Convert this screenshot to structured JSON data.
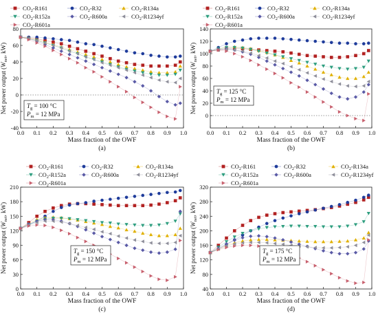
{
  "figure": {
    "x_label": "Mass fraction of the OWF",
    "y_label_main": "Net power output (",
    "y_label_sym": "W",
    "y_label_sub": "net",
    "y_label_unit": ", kW)",
    "pressure_sym": "P",
    "pressure_sub": "m",
    "temp_sym": "T",
    "temp_sub": "g",
    "legend_prefix": "CO",
    "legend_sub": "2",
    "legend_suffixes": [
      "-R161",
      "-R32",
      "-R134a",
      "-R152a",
      "-R600a",
      "-R1234yf",
      "-R601a"
    ]
  },
  "chart_data": [
    {
      "type": "scatter",
      "panel_label": "(a)",
      "temperature": "= 100 °C",
      "pressure": "= 12 MPa",
      "xlim": [
        0.0,
        1.0
      ],
      "ylim": [
        -40,
        80
      ],
      "xticks": [
        "0.0",
        "0.1",
        "0.2",
        "0.3",
        "0.4",
        "0.5",
        "0.6",
        "0.7",
        "0.8",
        "0.9",
        "1.0"
      ],
      "yticks": [
        "-40",
        "-20",
        "0",
        "20",
        "40",
        "60",
        "80"
      ],
      "ref_line_y": 0,
      "x": [
        0,
        0.05,
        0.1,
        0.15,
        0.2,
        0.25,
        0.3,
        0.35,
        0.4,
        0.45,
        0.5,
        0.55,
        0.6,
        0.65,
        0.7,
        0.75,
        0.8,
        0.85,
        0.9,
        0.95,
        0.98
      ],
      "series": [
        {
          "name": "CO2-R161",
          "color": "#b22222",
          "marker": "square",
          "values": [
            70,
            69,
            68,
            66,
            64,
            62,
            59,
            56,
            53,
            50,
            47,
            44,
            41,
            39,
            37,
            36,
            35,
            35,
            35,
            36,
            40
          ]
        },
        {
          "name": "CO2-R32",
          "color": "#1f3c9b",
          "marker": "circle",
          "values": [
            70,
            70,
            70,
            69,
            68,
            67,
            66,
            64,
            62,
            61,
            59,
            57,
            55,
            53,
            51,
            50,
            48,
            47,
            46,
            46,
            47
          ]
        },
        {
          "name": "CO2-R134a",
          "color": "#e0b000",
          "marker": "triangle",
          "values": [
            70,
            69,
            67,
            64,
            61,
            58,
            55,
            52,
            49,
            46,
            43,
            40,
            37,
            34,
            32,
            30,
            28,
            27,
            27,
            28,
            35
          ]
        },
        {
          "name": "CO2-R152a",
          "color": "#2e9e7f",
          "marker": "triangle-down",
          "values": [
            70,
            68,
            66,
            63,
            60,
            57,
            53,
            50,
            46,
            43,
            40,
            37,
            34,
            31,
            29,
            27,
            25,
            24,
            24,
            25,
            30
          ]
        },
        {
          "name": "CO2-R600a",
          "color": "#5a5aa6",
          "marker": "diamond",
          "values": [
            70,
            68,
            65,
            61,
            57,
            53,
            49,
            45,
            41,
            37,
            33,
            29,
            25,
            21,
            16,
            11,
            5,
            -2,
            -8,
            -12,
            -10
          ]
        },
        {
          "name": "CO2-R1234yf",
          "color": "#8e8e9a",
          "marker": "triangle-left",
          "values": [
            70,
            68,
            66,
            63,
            60,
            57,
            53,
            50,
            46,
            43,
            39,
            36,
            33,
            30,
            27,
            24,
            21,
            18,
            16,
            15,
            20
          ]
        },
        {
          "name": "CO2-R601a",
          "color": "#c8606e",
          "marker": "triangle-right",
          "values": [
            70,
            67,
            63,
            59,
            54,
            49,
            44,
            39,
            33,
            28,
            22,
            16,
            10,
            4,
            -3,
            -9,
            -15,
            -21,
            -26,
            -29,
            10
          ]
        }
      ]
    },
    {
      "type": "scatter",
      "panel_label": "(b)",
      "temperature": "= 125 °C",
      "pressure": "= 12 MPa",
      "xlim": [
        0.0,
        1.0
      ],
      "ylim": [
        -20,
        140
      ],
      "xticks": [
        "0.0",
        "0.1",
        "0.2",
        "0.3",
        "0.4",
        "0.5",
        "0.6",
        "0.7",
        "0.8",
        "0.9",
        "1.0"
      ],
      "yticks": [
        "0",
        "20",
        "40",
        "60",
        "80",
        "100",
        "120",
        "140"
      ],
      "ref_line_y": 0,
      "x": [
        0,
        0.05,
        0.1,
        0.15,
        0.2,
        0.25,
        0.3,
        0.35,
        0.4,
        0.45,
        0.5,
        0.55,
        0.6,
        0.65,
        0.7,
        0.75,
        0.8,
        0.85,
        0.9,
        0.95,
        0.98
      ],
      "series": [
        {
          "name": "CO2-R161",
          "color": "#b22222",
          "marker": "square",
          "values": [
            104,
            106,
            108,
            108,
            108,
            107,
            106,
            105,
            104,
            103,
            101,
            99,
            97,
            96,
            95,
            94,
            94,
            95,
            97,
            100,
            105
          ]
        },
        {
          "name": "CO2-R32",
          "color": "#1f3c9b",
          "marker": "circle",
          "values": [
            104,
            110,
            116,
            120,
            122,
            124,
            125,
            125,
            125,
            124,
            123,
            122,
            121,
            120,
            119,
            118,
            117,
            117,
            116,
            116,
            117
          ]
        },
        {
          "name": "CO2-R134a",
          "color": "#e0b000",
          "marker": "triangle",
          "values": [
            104,
            108,
            110,
            111,
            110,
            108,
            105,
            102,
            98,
            94,
            89,
            85,
            80,
            75,
            70,
            66,
            62,
            60,
            60,
            63,
            70
          ]
        },
        {
          "name": "CO2-R152a",
          "color": "#2e9e7f",
          "marker": "triangle-down",
          "values": [
            104,
            108,
            110,
            110,
            109,
            107,
            104,
            101,
            98,
            95,
            92,
            89,
            86,
            83,
            80,
            78,
            76,
            75,
            76,
            78,
            88
          ]
        },
        {
          "name": "CO2-R600a",
          "color": "#5a5aa6",
          "marker": "diamond",
          "values": [
            104,
            107,
            108,
            106,
            103,
            99,
            94,
            88,
            82,
            76,
            70,
            64,
            57,
            50,
            43,
            36,
            30,
            27,
            30,
            38,
            50
          ]
        },
        {
          "name": "CO2-R1234yf",
          "color": "#8e8e9a",
          "marker": "triangle-left",
          "values": [
            104,
            106,
            107,
            106,
            104,
            101,
            97,
            93,
            88,
            84,
            79,
            74,
            69,
            64,
            59,
            55,
            51,
            48,
            47,
            48,
            55
          ]
        },
        {
          "name": "CO2-R601a",
          "color": "#c8606e",
          "marker": "triangle-right",
          "values": [
            104,
            106,
            104,
            100,
            95,
            89,
            82,
            75,
            68,
            61,
            53,
            46,
            38,
            30,
            22,
            14,
            6,
            0,
            -5,
            -8,
            35
          ]
        }
      ]
    },
    {
      "type": "scatter",
      "panel_label": "(c)",
      "temperature": "= 150 °C",
      "pressure": "= 12 MPa",
      "xlim": [
        0.0,
        1.0
      ],
      "ylim": [
        0,
        210
      ],
      "xticks": [
        "0.0",
        "0.1",
        "0.2",
        "0.3",
        "0.4",
        "0.5",
        "0.6",
        "0.7",
        "0.8",
        "0.9",
        "1.0"
      ],
      "yticks": [
        "0",
        "30",
        "60",
        "90",
        "120",
        "150",
        "180",
        "210"
      ],
      "ref_line_y": null,
      "x": [
        0,
        0.05,
        0.1,
        0.15,
        0.2,
        0.25,
        0.3,
        0.35,
        0.4,
        0.45,
        0.5,
        0.55,
        0.6,
        0.65,
        0.7,
        0.75,
        0.8,
        0.85,
        0.9,
        0.95,
        0.98
      ],
      "series": [
        {
          "name": "CO2-R161",
          "color": "#b22222",
          "marker": "square",
          "values": [
            125,
            137,
            150,
            160,
            167,
            172,
            175,
            176,
            176,
            175,
            174,
            173,
            172,
            172,
            172,
            172,
            173,
            175,
            178,
            182,
            188
          ]
        },
        {
          "name": "CO2-R32",
          "color": "#1f3c9b",
          "marker": "circle",
          "values": [
            125,
            132,
            140,
            150,
            160,
            168,
            173,
            176,
            178,
            181,
            183,
            185,
            187,
            189,
            191,
            193,
            195,
            197,
            199,
            200,
            203
          ]
        },
        {
          "name": "CO2-R134a",
          "color": "#e0b000",
          "marker": "triangle",
          "values": [
            125,
            135,
            143,
            147,
            148,
            147,
            145,
            142,
            139,
            136,
            133,
            129,
            126,
            122,
            119,
            115,
            112,
            110,
            110,
            112,
            125
          ]
        },
        {
          "name": "CO2-R152a",
          "color": "#2e9e7f",
          "marker": "triangle-down",
          "values": [
            125,
            133,
            140,
            144,
            146,
            146,
            145,
            143,
            141,
            139,
            137,
            136,
            134,
            133,
            132,
            131,
            131,
            132,
            135,
            140,
            155
          ]
        },
        {
          "name": "CO2-R600a",
          "color": "#5a5aa6",
          "marker": "diamond",
          "values": [
            125,
            134,
            140,
            143,
            143,
            140,
            135,
            129,
            122,
            115,
            108,
            102,
            96,
            90,
            84,
            80,
            76,
            74,
            76,
            82,
            160
          ]
        },
        {
          "name": "CO2-R1234yf",
          "color": "#8e8e9a",
          "marker": "triangle-left",
          "values": [
            125,
            132,
            137,
            140,
            140,
            138,
            135,
            131,
            127,
            123,
            118,
            114,
            109,
            105,
            101,
            98,
            95,
            94,
            94,
            96,
            110
          ]
        },
        {
          "name": "CO2-R601a",
          "color": "#c8606e",
          "marker": "triangle-right",
          "values": [
            125,
            130,
            132,
            131,
            127,
            121,
            114,
            106,
            98,
            90,
            81,
            72,
            63,
            54,
            45,
            36,
            27,
            20,
            18,
            25,
            100
          ]
        }
      ]
    },
    {
      "type": "scatter",
      "panel_label": "(d)",
      "temperature": "= 175 °C",
      "pressure": "= 12 MPa",
      "xlim": [
        0.0,
        1.0
      ],
      "ylim": [
        40,
        320
      ],
      "xticks": [
        "0.0",
        "0.1",
        "0.2",
        "0.3",
        "0.4",
        "0.5",
        "0.6",
        "0.7",
        "0.8",
        "0.9",
        "1.0"
      ],
      "yticks": [
        "40",
        "80",
        "120",
        "160",
        "200",
        "240",
        "280",
        "320"
      ],
      "ref_line_y": null,
      "x": [
        0,
        0.05,
        0.1,
        0.15,
        0.2,
        0.25,
        0.3,
        0.35,
        0.4,
        0.45,
        0.5,
        0.55,
        0.6,
        0.65,
        0.7,
        0.75,
        0.8,
        0.85,
        0.9,
        0.95,
        0.98
      ],
      "series": [
        {
          "name": "CO2-R161",
          "color": "#b22222",
          "marker": "square",
          "values": [
            140,
            160,
            180,
            200,
            215,
            228,
            237,
            243,
            247,
            250,
            252,
            254,
            256,
            258,
            261,
            264,
            268,
            273,
            278,
            285,
            292
          ]
        },
        {
          "name": "CO2-R32",
          "color": "#1f3c9b",
          "marker": "circle",
          "values": [
            140,
            150,
            162,
            175,
            188,
            200,
            210,
            220,
            228,
            235,
            241,
            247,
            252,
            257,
            262,
            267,
            272,
            278,
            284,
            292,
            298
          ]
        },
        {
          "name": "CO2-R134a",
          "color": "#e0b000",
          "marker": "triangle",
          "values": [
            140,
            150,
            160,
            167,
            172,
            175,
            176,
            176,
            175,
            174,
            173,
            172,
            171,
            170,
            170,
            170,
            171,
            172,
            175,
            180,
            195
          ]
        },
        {
          "name": "CO2-R152a",
          "color": "#2e9e7f",
          "marker": "triangle-down",
          "values": [
            140,
            155,
            170,
            183,
            193,
            200,
            205,
            209,
            211,
            212,
            213,
            213,
            212,
            212,
            211,
            211,
            211,
            213,
            217,
            225,
            248
          ]
        },
        {
          "name": "CO2-R600a",
          "color": "#5a5aa6",
          "marker": "diamond",
          "values": [
            140,
            152,
            164,
            174,
            181,
            185,
            186,
            184,
            180,
            175,
            169,
            163,
            157,
            151,
            145,
            140,
            137,
            137,
            140,
            150,
            172
          ]
        },
        {
          "name": "CO2-R1234yf",
          "color": "#8e8e9a",
          "marker": "triangle-left",
          "values": [
            140,
            150,
            158,
            164,
            167,
            168,
            168,
            167,
            165,
            163,
            160,
            158,
            156,
            154,
            153,
            153,
            154,
            156,
            160,
            168,
            188
          ]
        },
        {
          "name": "CO2-R601a",
          "color": "#c8606e",
          "marker": "triangle-right",
          "values": [
            140,
            148,
            154,
            158,
            160,
            160,
            158,
            154,
            149,
            142,
            134,
            125,
            115,
            104,
            93,
            82,
            71,
            62,
            56,
            58,
            175
          ]
        }
      ]
    }
  ]
}
